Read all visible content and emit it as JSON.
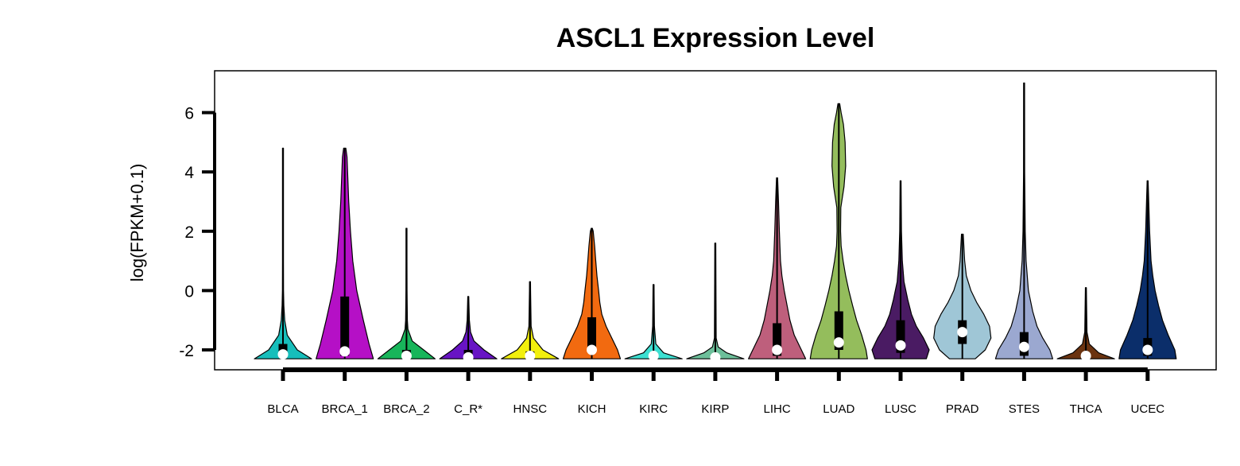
{
  "chart_data": {
    "type": "violin",
    "title": "ASCL1 Expression Level",
    "xlabel": "",
    "ylabel": "log(FPKM+0.1)",
    "ylim": [
      -2.3,
      7.0
    ],
    "yticks": [
      -2,
      0,
      2,
      4,
      6
    ],
    "ytick_labels": [
      "-2",
      "0",
      "2",
      "4",
      "6"
    ],
    "grid": false,
    "legend": "none",
    "categories": [
      "BLCA",
      "BRCA_1",
      "BRCA_2",
      "C_R*",
      "HNSC",
      "KICH",
      "KIRC",
      "KIRP",
      "LIHC",
      "LUAD",
      "LUSC",
      "PRAD",
      "STES",
      "THCA",
      "UCEC"
    ],
    "series": [
      {
        "category": "BLCA",
        "color": "#17BEBB",
        "min": -2.3,
        "max": 4.8,
        "q1": -2.2,
        "q3": -1.8,
        "median": -2.15,
        "density_nodes": [
          [
            -2.3,
            1.0
          ],
          [
            -2.0,
            0.5
          ],
          [
            -1.5,
            0.15
          ],
          [
            -1.0,
            0.06
          ],
          [
            -0.5,
            0.03
          ],
          [
            0,
            0.02
          ],
          [
            1,
            0.015
          ],
          [
            2,
            0.015
          ],
          [
            3,
            0.015
          ],
          [
            4,
            0.015
          ],
          [
            4.8,
            0.01
          ]
        ]
      },
      {
        "category": "BRCA_1",
        "color": "#B510C6",
        "min": -2.3,
        "max": 4.8,
        "q1": -2.2,
        "q3": -0.2,
        "median": -2.05,
        "density_nodes": [
          [
            -2.3,
            1.0
          ],
          [
            -1.8,
            0.85
          ],
          [
            -1,
            0.65
          ],
          [
            0,
            0.42
          ],
          [
            1,
            0.28
          ],
          [
            2,
            0.2
          ],
          [
            3,
            0.14
          ],
          [
            4,
            0.1
          ],
          [
            4.5,
            0.08
          ],
          [
            4.8,
            0.04
          ]
        ]
      },
      {
        "category": "BRCA_2",
        "color": "#18B55A",
        "min": -2.3,
        "max": 2.1,
        "q1": -2.25,
        "q3": -2.0,
        "median": -2.2,
        "density_nodes": [
          [
            -2.3,
            1.0
          ],
          [
            -2.0,
            0.6
          ],
          [
            -1.7,
            0.2
          ],
          [
            -1.3,
            0.05
          ],
          [
            -1,
            0.03
          ],
          [
            0,
            0.02
          ],
          [
            1,
            0.015
          ],
          [
            2.1,
            0.01
          ]
        ]
      },
      {
        "category": "C_R*",
        "color": "#6814C4",
        "min": -2.3,
        "max": -0.2,
        "q1": -2.25,
        "q3": -2.0,
        "median": -2.25,
        "density_nodes": [
          [
            -2.3,
            1.0
          ],
          [
            -2.0,
            0.55
          ],
          [
            -1.7,
            0.2
          ],
          [
            -1.4,
            0.08
          ],
          [
            -1.0,
            0.04
          ],
          [
            -0.2,
            0.015
          ]
        ]
      },
      {
        "category": "HNSC",
        "color": "#F2EF0C",
        "min": -2.3,
        "max": 0.3,
        "q1": -2.25,
        "q3": -2.05,
        "median": -2.2,
        "density_nodes": [
          [
            -2.3,
            1.0
          ],
          [
            -2.0,
            0.45
          ],
          [
            -1.6,
            0.12
          ],
          [
            -1.2,
            0.04
          ],
          [
            0,
            0.02
          ],
          [
            0.3,
            0.01
          ]
        ]
      },
      {
        "category": "KICH",
        "color": "#F26A10",
        "min": -2.3,
        "max": 2.1,
        "q1": -2.05,
        "q3": -0.9,
        "median": -2.0,
        "density_nodes": [
          [
            -2.3,
            1.0
          ],
          [
            -2.0,
            0.9
          ],
          [
            -1.6,
            0.7
          ],
          [
            -1.2,
            0.5
          ],
          [
            -0.8,
            0.35
          ],
          [
            -0.4,
            0.28
          ],
          [
            0,
            0.24
          ],
          [
            0.5,
            0.18
          ],
          [
            1,
            0.14
          ],
          [
            1.5,
            0.1
          ],
          [
            2,
            0.05
          ],
          [
            2.1,
            0.02
          ]
        ]
      },
      {
        "category": "KIRC",
        "color": "#3CE0D2",
        "min": -2.3,
        "max": 0.2,
        "q1": -2.25,
        "q3": -2.1,
        "median": -2.2,
        "density_nodes": [
          [
            -2.3,
            1.0
          ],
          [
            -2.1,
            0.35
          ],
          [
            -1.8,
            0.08
          ],
          [
            -1.2,
            0.03
          ],
          [
            0.2,
            0.01
          ]
        ]
      },
      {
        "category": "KIRP",
        "color": "#6CBF9A",
        "min": -2.3,
        "max": 1.6,
        "q1": -2.28,
        "q3": -2.2,
        "median": -2.25,
        "density_nodes": [
          [
            -2.3,
            1.0
          ],
          [
            -2.1,
            0.4
          ],
          [
            -1.9,
            0.1
          ],
          [
            -1.6,
            0.03
          ],
          [
            1.6,
            0.01
          ]
        ]
      },
      {
        "category": "LIHC",
        "color": "#BE5F7C",
        "min": -2.3,
        "max": 3.8,
        "q1": -2.2,
        "q3": -1.1,
        "median": -2.0,
        "density_nodes": [
          [
            -2.3,
            1.0
          ],
          [
            -2.0,
            0.85
          ],
          [
            -1.5,
            0.6
          ],
          [
            -1,
            0.45
          ],
          [
            -0.5,
            0.35
          ],
          [
            0,
            0.25
          ],
          [
            0.5,
            0.17
          ],
          [
            1,
            0.12
          ],
          [
            2,
            0.08
          ],
          [
            3,
            0.05
          ],
          [
            3.8,
            0.02
          ]
        ]
      },
      {
        "category": "LUAD",
        "color": "#94BD5C",
        "min": -2.3,
        "max": 6.3,
        "q1": -2.0,
        "q3": -0.7,
        "median": -1.75,
        "density_nodes": [
          [
            -2.3,
            1.0
          ],
          [
            -2.0,
            0.95
          ],
          [
            -1.5,
            0.8
          ],
          [
            -1.0,
            0.62
          ],
          [
            -0.5,
            0.48
          ],
          [
            0,
            0.35
          ],
          [
            0.5,
            0.24
          ],
          [
            1,
            0.15
          ],
          [
            1.5,
            0.08
          ],
          [
            2,
            0.06
          ],
          [
            2.8,
            0.07
          ],
          [
            3.5,
            0.18
          ],
          [
            4.2,
            0.24
          ],
          [
            5.0,
            0.22
          ],
          [
            5.6,
            0.16
          ],
          [
            6,
            0.08
          ],
          [
            6.3,
            0.03
          ]
        ]
      },
      {
        "category": "LUSC",
        "color": "#4A1B63",
        "min": -2.3,
        "max": 3.7,
        "q1": -2.1,
        "q3": -1.0,
        "median": -1.85,
        "density_nodes": [
          [
            -2.3,
            0.9
          ],
          [
            -2.0,
            1.0
          ],
          [
            -1.6,
            0.8
          ],
          [
            -1.2,
            0.55
          ],
          [
            -0.8,
            0.38
          ],
          [
            -0.3,
            0.25
          ],
          [
            0.3,
            0.12
          ],
          [
            1,
            0.06
          ],
          [
            2,
            0.03
          ],
          [
            3.7,
            0.01
          ]
        ]
      },
      {
        "category": "PRAD",
        "color": "#9FC6D6",
        "min": -2.3,
        "max": 1.9,
        "q1": -1.8,
        "q3": -1.0,
        "median": -1.4,
        "density_nodes": [
          [
            -2.3,
            0.45
          ],
          [
            -2.0,
            0.8
          ],
          [
            -1.6,
            1.0
          ],
          [
            -1.2,
            0.95
          ],
          [
            -0.8,
            0.75
          ],
          [
            -0.4,
            0.5
          ],
          [
            0,
            0.3
          ],
          [
            0.5,
            0.14
          ],
          [
            1,
            0.08
          ],
          [
            1.9,
            0.03
          ]
        ]
      },
      {
        "category": "STES",
        "color": "#9BA8D0",
        "min": -2.3,
        "max": 7.0,
        "q1": -2.2,
        "q3": -1.4,
        "median": -1.9,
        "density_nodes": [
          [
            -2.3,
            1.0
          ],
          [
            -2.0,
            0.9
          ],
          [
            -1.6,
            0.65
          ],
          [
            -1.2,
            0.45
          ],
          [
            -0.7,
            0.3
          ],
          [
            0,
            0.15
          ],
          [
            1,
            0.07
          ],
          [
            2,
            0.04
          ],
          [
            4,
            0.02
          ],
          [
            7,
            0.01
          ]
        ]
      },
      {
        "category": "THCA",
        "color": "#6B3310",
        "min": -2.3,
        "max": 0.1,
        "q1": -2.28,
        "q3": -2.15,
        "median": -2.2,
        "density_nodes": [
          [
            -2.3,
            1.0
          ],
          [
            -2.1,
            0.45
          ],
          [
            -1.8,
            0.12
          ],
          [
            -1.4,
            0.04
          ],
          [
            0.1,
            0.01
          ]
        ]
      },
      {
        "category": "UCEC",
        "color": "#0B2E6A",
        "min": -2.3,
        "max": 3.7,
        "q1": -2.2,
        "q3": -1.6,
        "median": -2.0,
        "density_nodes": [
          [
            -2.3,
            1.0
          ],
          [
            -2.0,
            0.95
          ],
          [
            -1.5,
            0.72
          ],
          [
            -1.0,
            0.52
          ],
          [
            -0.5,
            0.38
          ],
          [
            0,
            0.26
          ],
          [
            0.5,
            0.18
          ],
          [
            1,
            0.12
          ],
          [
            2,
            0.07
          ],
          [
            3,
            0.04
          ],
          [
            3.7,
            0.015
          ]
        ]
      }
    ]
  }
}
